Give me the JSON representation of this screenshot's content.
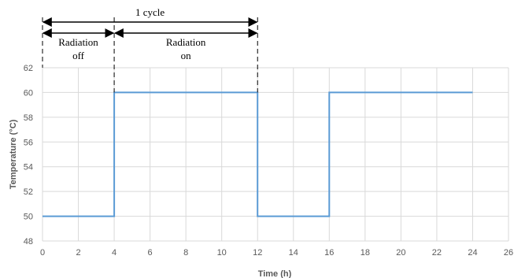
{
  "chart_data": {
    "type": "line",
    "title": "",
    "xlabel": "Time (h)",
    "ylabel": "Temperature (°C)",
    "xlim": [
      0,
      26
    ],
    "ylim": [
      48,
      62
    ],
    "xticks": [
      0,
      2,
      4,
      6,
      8,
      10,
      12,
      14,
      16,
      18,
      20,
      22,
      24,
      26
    ],
    "yticks": [
      48,
      50,
      52,
      54,
      56,
      58,
      60,
      62
    ],
    "grid": true,
    "line_style": "step",
    "series": [
      {
        "x": [
          0,
          4,
          4,
          12,
          12,
          16,
          16,
          24
        ],
        "y": [
          50,
          50,
          60,
          60,
          50,
          50,
          60,
          60
        ]
      }
    ],
    "annotations": {
      "cycle": {
        "label": "1 cycle",
        "x_start": 0,
        "x_end": 12
      },
      "phases": [
        {
          "label_lines": [
            "Radiation",
            "off"
          ],
          "x_start": 0,
          "x_end": 4
        },
        {
          "label_lines": [
            "Radiation",
            "on"
          ],
          "x_start": 4,
          "x_end": 12
        }
      ]
    }
  },
  "colors": {
    "series": "#5b9bd5",
    "grid": "#d9d9d9",
    "axis_text": "#595959",
    "annotation": "#000000"
  }
}
